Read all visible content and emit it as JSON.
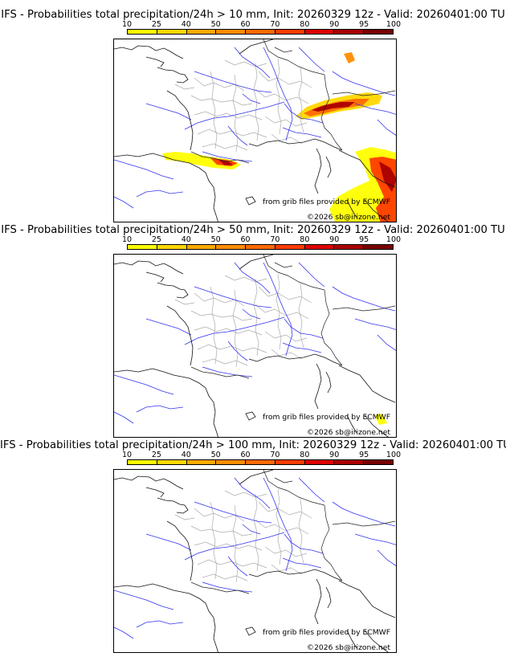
{
  "legend": {
    "ticks": [
      "10",
      "25",
      "40",
      "50",
      "60",
      "70",
      "80",
      "90",
      "95",
      "100"
    ],
    "colors": [
      "#ffff00",
      "#ffd700",
      "#ffaa00",
      "#ff8c00",
      "#ff6a00",
      "#ff3c00",
      "#dd0000",
      "#aa0000",
      "#780000"
    ]
  },
  "panels": [
    {
      "title": "IFS - Probabilities total precipitation/24h > 10 mm, Init: 20260329 12z - Valid: 20260401:00 TU",
      "credit_source": "from grib files provided by ECMWF",
      "credit_copyright": "©2026 sb@irizone.net",
      "overlay": "gt10"
    },
    {
      "title": "IFS - Probabilities total precipitation/24h > 50 mm, Init: 20260329 12z - Valid: 20260401:00 TU",
      "credit_source": "from grib files provided by ECMWF",
      "credit_copyright": "©2026 sb@irizone.net",
      "overlay": "gt50"
    },
    {
      "title": "IFS - Probabilities total precipitation/24h > 100 mm, Init: 20260329 12z - Valid: 20260401:00 TU",
      "credit_source": "from grib files provided by ECMWF",
      "credit_copyright": "©2026 sb@irizone.net",
      "overlay": "none"
    }
  ]
}
